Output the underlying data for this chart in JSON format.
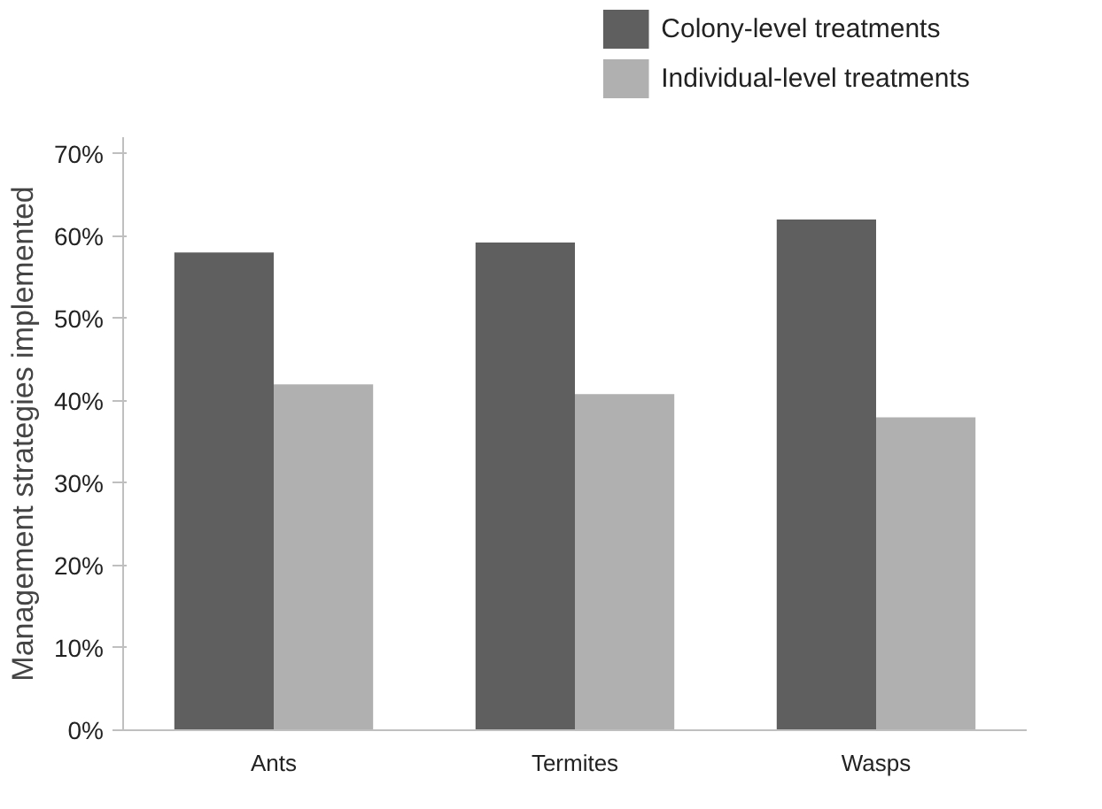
{
  "chart_data": {
    "type": "bar",
    "ylabel": "Management strategies implemented",
    "categories": [
      "Ants",
      "Termites",
      "Wasps"
    ],
    "series": [
      {
        "name": "Colony-level treatments",
        "color": "#5f5f5f",
        "values": [
          58,
          59.2,
          62
        ]
      },
      {
        "name": "Individual-level treatments",
        "color": "#b0b0b0",
        "values": [
          42,
          40.8,
          38
        ]
      }
    ],
    "ylim": [
      0,
      72
    ],
    "yticks": [
      {
        "value": 0,
        "label": "0%"
      },
      {
        "value": 10,
        "label": "10%"
      },
      {
        "value": 20,
        "label": "20%"
      },
      {
        "value": 30,
        "label": "30%"
      },
      {
        "value": 40,
        "label": "40%"
      },
      {
        "value": 50,
        "label": "50%"
      },
      {
        "value": 60,
        "label": "60%"
      },
      {
        "value": 70,
        "label": "70%"
      }
    ],
    "grid": false,
    "legend": "top right"
  }
}
